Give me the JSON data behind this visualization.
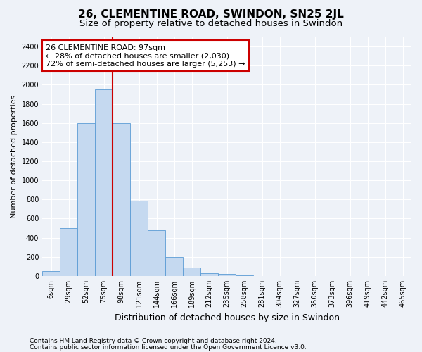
{
  "title": "26, CLEMENTINE ROAD, SWINDON, SN25 2JL",
  "subtitle": "Size of property relative to detached houses in Swindon",
  "xlabel": "Distribution of detached houses by size in Swindon",
  "ylabel": "Number of detached properties",
  "categories": [
    "6sqm",
    "29sqm",
    "52sqm",
    "75sqm",
    "98sqm",
    "121sqm",
    "144sqm",
    "166sqm",
    "189sqm",
    "212sqm",
    "235sqm",
    "258sqm",
    "281sqm",
    "304sqm",
    "327sqm",
    "350sqm",
    "373sqm",
    "396sqm",
    "419sqm",
    "442sqm",
    "465sqm"
  ],
  "values": [
    50,
    500,
    1600,
    1950,
    1600,
    790,
    475,
    200,
    90,
    30,
    20,
    10,
    0,
    0,
    0,
    0,
    0,
    0,
    0,
    0,
    0
  ],
  "bar_color": "#c5d9f0",
  "bar_edge_color": "#5b9bd5",
  "red_line_index": 4,
  "annotation_text": "26 CLEMENTINE ROAD: 97sqm\n← 28% of detached houses are smaller (2,030)\n72% of semi-detached houses are larger (5,253) →",
  "annotation_box_facecolor": "#ffffff",
  "annotation_box_edgecolor": "#cc0000",
  "ylim": [
    0,
    2500
  ],
  "yticks": [
    0,
    200,
    400,
    600,
    800,
    1000,
    1200,
    1400,
    1600,
    1800,
    2000,
    2200,
    2400
  ],
  "footer1": "Contains HM Land Registry data © Crown copyright and database right 2024.",
  "footer2": "Contains public sector information licensed under the Open Government Licence v3.0.",
  "bg_color": "#eef2f8",
  "grid_color": "#ffffff",
  "title_fontsize": 11,
  "subtitle_fontsize": 9.5,
  "xlabel_fontsize": 9,
  "ylabel_fontsize": 8,
  "tick_fontsize": 7,
  "annotation_fontsize": 8,
  "footer_fontsize": 6.5
}
